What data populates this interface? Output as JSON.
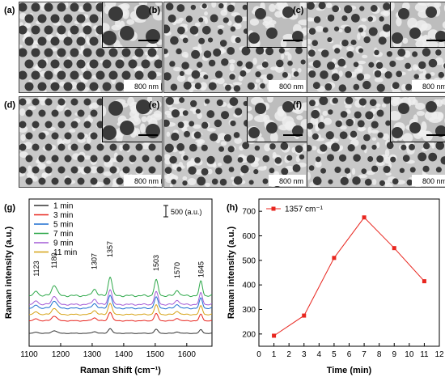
{
  "figure": {
    "panels": [
      {
        "label": "(a)",
        "scale": "800 nm",
        "holes": "ordered"
      },
      {
        "label": "(b)",
        "scale": "800 nm",
        "holes": "disordered"
      },
      {
        "label": "(c)",
        "scale": "800 nm",
        "holes": "disordered"
      },
      {
        "label": "(d)",
        "scale": "800 nm",
        "holes": "ordered"
      },
      {
        "label": "(e)",
        "scale": "800 nm",
        "holes": "disordered"
      },
      {
        "label": "(f)",
        "scale": "800 nm",
        "holes": "disordered"
      }
    ],
    "colors": {
      "sem_bg": "#c8c8c8",
      "hole": "#3a3a3a",
      "grain": "#f0f0f0"
    }
  },
  "chart_data": [
    {
      "type": "line",
      "panel_label": "(g)",
      "xlabel": "Raman Shift (cm⁻¹)",
      "ylabel": "Raman intensity (a.u.)",
      "xlim": [
        1100,
        1680
      ],
      "xticks": [
        1100,
        1200,
        1300,
        1400,
        1500,
        1600
      ],
      "scale_bar_label": "500 (a.u.)",
      "peak_labels": [
        "1123",
        "1180",
        "1307",
        "1357",
        "1503",
        "1570",
        "1645"
      ],
      "peak_positions": [
        1123,
        1180,
        1307,
        1357,
        1503,
        1570,
        1645
      ],
      "series": [
        {
          "name": "1 min",
          "color": "#333333",
          "offset": 0,
          "scale": 0.25
        },
        {
          "name": "3 min",
          "color": "#e8261f",
          "offset": 1,
          "scale": 0.45
        },
        {
          "name": "5 min",
          "color": "#1f6fd0",
          "offset": 2,
          "scale": 0.7
        },
        {
          "name": "7 min",
          "color": "#2ea84a",
          "offset": 3,
          "scale": 1.0
        },
        {
          "name": "9 min",
          "color": "#a45cd6",
          "offset": 2.3,
          "scale": 0.8
        },
        {
          "name": "11 min",
          "color": "#d6a316",
          "offset": 1.5,
          "scale": 0.6
        }
      ]
    },
    {
      "type": "line",
      "panel_label": "(h)",
      "xlabel": "Time (min)",
      "ylabel": "Raman intensity (a.u.)",
      "xlim": [
        0,
        12
      ],
      "ylim": [
        150,
        750
      ],
      "xticks": [
        0,
        1,
        2,
        3,
        4,
        5,
        6,
        7,
        8,
        9,
        10,
        11,
        12
      ],
      "yticks": [
        200,
        300,
        400,
        500,
        600,
        700
      ],
      "series": [
        {
          "name": "1357 cm⁻¹",
          "color": "#e8261f",
          "x": [
            1,
            3,
            5,
            7,
            9,
            11
          ],
          "y": [
            193,
            275,
            510,
            675,
            550,
            415
          ]
        }
      ]
    }
  ]
}
